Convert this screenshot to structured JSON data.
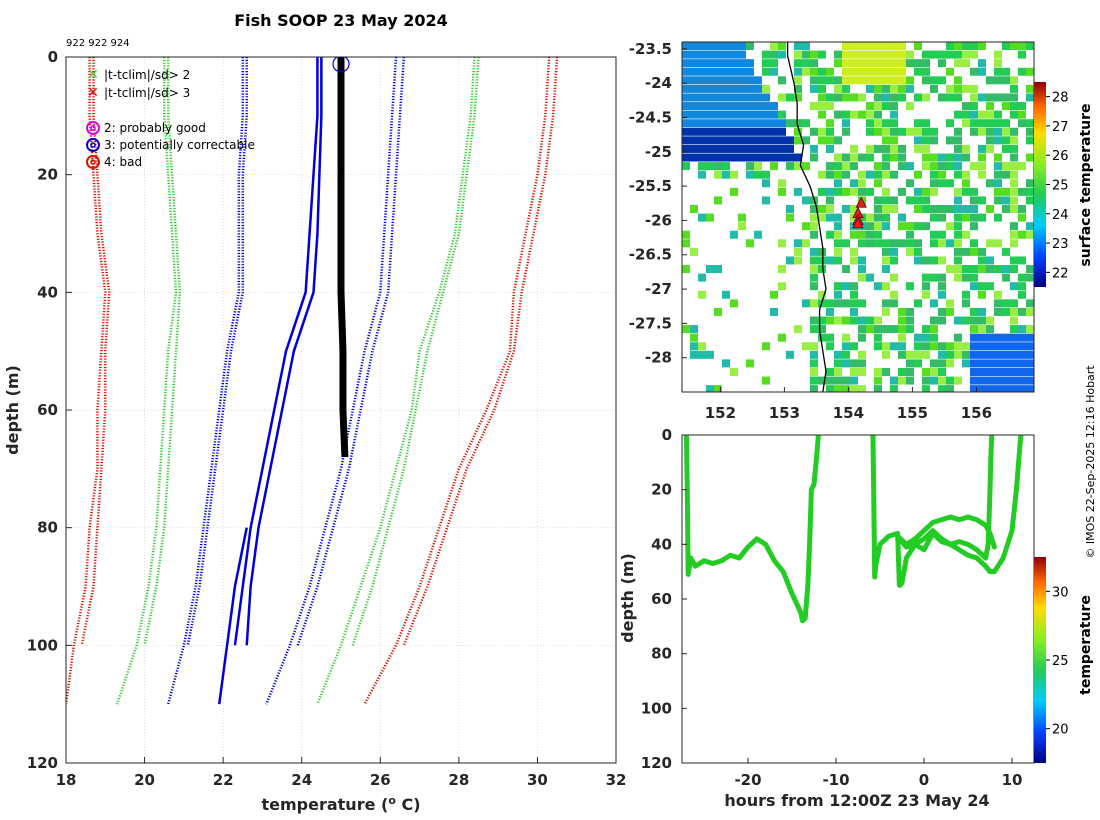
{
  "title": "Fish SOOP 23 May 2024",
  "platform_ids": "922 922 924",
  "credit": "© IMOS 22-Sep-2025 12:16 Hobart",
  "colors": {
    "profile": "#000000",
    "sd1": "#0000dd",
    "sd2": "#33cc33",
    "sd3": "#dd1100",
    "track": "#22cc22",
    "marker": "#dd2222"
  },
  "legend": {
    "items": [
      {
        "symbol": "x",
        "color": "#33cc33",
        "label": "|t-tclim|/sd> 2"
      },
      {
        "symbol": "x",
        "color": "#dd1100",
        "label": "|t-tclim|/sd> 3"
      },
      {
        "symbol": "o",
        "color": "#dd00dd",
        "label": "2: probably good"
      },
      {
        "symbol": "o",
        "color": "#0000dd",
        "label": "3: potentially correctable"
      },
      {
        "symbol": "o",
        "color": "#dd1100",
        "label": "4: bad"
      }
    ]
  },
  "chart_data": [
    {
      "type": "line",
      "name": "profile",
      "xlabel": "temperature (",
      "xlabel_sup": "o",
      "xlabel_end": " C)",
      "ylabel": "depth (m)",
      "xlim": [
        18,
        32
      ],
      "ylim": [
        0,
        120
      ],
      "y_reversed": true,
      "xticks": [
        18,
        20,
        22,
        24,
        26,
        28,
        30,
        32
      ],
      "yticks": [
        0,
        20,
        40,
        60,
        80,
        100,
        120
      ],
      "grid": true,
      "observed": {
        "name": "observed profile",
        "color": "#000000",
        "depth": [
          0,
          10,
          20,
          30,
          40,
          50,
          60,
          68
        ],
        "temp": [
          25.0,
          25.0,
          25.0,
          25.0,
          25.0,
          25.05,
          25.05,
          25.1
        ]
      },
      "flag_marker": {
        "flag": 3,
        "temp": 25.0,
        "depth": 0.5
      },
      "climatology": [
        {
          "name": "clim mean",
          "color": "#0000dd",
          "style": "solid",
          "depth": [
            0,
            10,
            20,
            30,
            40,
            50,
            60,
            70,
            80,
            90,
            100
          ],
          "temp": [
            24.4,
            24.4,
            24.3,
            24.2,
            24.1,
            23.6,
            23.3,
            23.0,
            22.7,
            22.5,
            22.3
          ]
        },
        {
          "name": "clim mean (2)",
          "color": "#0000dd",
          "style": "solid",
          "depth": [
            0,
            10,
            20,
            30,
            40,
            50,
            60,
            70,
            80,
            90,
            100
          ],
          "temp": [
            24.5,
            24.5,
            24.45,
            24.4,
            24.3,
            23.8,
            23.5,
            23.2,
            22.9,
            22.7,
            22.6
          ]
        },
        {
          "name": "clim mean (3)",
          "color": "#0000dd",
          "style": "solid",
          "depth": [
            80,
            90,
            100,
            110
          ],
          "temp": [
            22.6,
            22.3,
            22.1,
            21.9
          ]
        },
        {
          "name": "-1 sd",
          "color": "#0000dd",
          "style": "dotted",
          "depth": [
            0,
            10,
            20,
            30,
            40,
            50,
            60,
            70,
            80,
            90,
            100,
            110
          ],
          "temp": [
            22.5,
            22.5,
            22.4,
            22.4,
            22.4,
            22.1,
            21.9,
            21.7,
            21.5,
            21.3,
            21.0,
            20.6
          ]
        },
        {
          "name": "-1 sd (2)",
          "color": "#0000dd",
          "style": "dotted",
          "depth": [
            0,
            10,
            20,
            30,
            40,
            50,
            60,
            70,
            80,
            90,
            100
          ],
          "temp": [
            22.6,
            22.6,
            22.5,
            22.5,
            22.5,
            22.2,
            22.0,
            21.8,
            21.6,
            21.4,
            21.1
          ]
        },
        {
          "name": "+1 sd",
          "color": "#0000dd",
          "style": "dotted",
          "depth": [
            0,
            10,
            20,
            30,
            40,
            50,
            60,
            70,
            80,
            90,
            100,
            110
          ],
          "temp": [
            26.4,
            26.3,
            26.2,
            26.1,
            26.0,
            25.6,
            25.3,
            25.0,
            24.6,
            24.2,
            23.7,
            23.1
          ]
        },
        {
          "name": "+1 sd (2)",
          "color": "#0000dd",
          "style": "dotted",
          "depth": [
            0,
            10,
            20,
            30,
            40,
            50,
            60,
            70,
            80,
            90,
            100
          ],
          "temp": [
            26.6,
            26.5,
            26.4,
            26.3,
            26.2,
            25.8,
            25.5,
            25.2,
            24.8,
            24.4,
            23.9
          ]
        },
        {
          "name": "-2 sd",
          "color": "#33cc33",
          "style": "dotted",
          "depth": [
            0,
            10,
            20,
            30,
            40,
            50,
            60,
            70,
            80,
            90,
            100,
            110
          ],
          "temp": [
            20.5,
            20.5,
            20.6,
            20.7,
            20.8,
            20.6,
            20.5,
            20.4,
            20.3,
            20.1,
            19.8,
            19.3
          ]
        },
        {
          "name": "-2 sd (2)",
          "color": "#33cc33",
          "style": "dotted",
          "depth": [
            0,
            10,
            20,
            30,
            40,
            50,
            60,
            70,
            80,
            90,
            100
          ],
          "temp": [
            20.6,
            20.6,
            20.7,
            20.8,
            20.9,
            20.8,
            20.7,
            20.6,
            20.5,
            20.3,
            20.0
          ]
        },
        {
          "name": "+2 sd",
          "color": "#33cc33",
          "style": "dotted",
          "depth": [
            0,
            10,
            20,
            30,
            40,
            50,
            60,
            70,
            80,
            90,
            100,
            110
          ],
          "temp": [
            28.4,
            28.3,
            28.1,
            27.9,
            27.5,
            27.0,
            26.8,
            26.4,
            26.0,
            25.5,
            25.0,
            24.4
          ]
        },
        {
          "name": "+2 sd (2)",
          "color": "#33cc33",
          "style": "dotted",
          "depth": [
            0,
            10,
            20,
            30,
            40,
            50,
            60,
            70,
            80,
            90,
            100
          ],
          "temp": [
            28.5,
            28.4,
            28.2,
            28.0,
            27.6,
            27.2,
            26.9,
            26.6,
            26.2,
            25.8,
            25.3
          ]
        },
        {
          "name": "-3 sd",
          "color": "#dd1100",
          "style": "dotted",
          "depth": [
            0,
            10,
            20,
            30,
            40,
            50,
            60,
            70,
            80,
            90,
            100,
            110
          ],
          "temp": [
            18.6,
            18.6,
            18.7,
            18.8,
            19.0,
            18.9,
            18.8,
            18.8,
            18.6,
            18.5,
            18.2,
            18.0
          ]
        },
        {
          "name": "-3 sd (2)",
          "color": "#dd1100",
          "style": "dotted",
          "depth": [
            0,
            10,
            20,
            30,
            40,
            50,
            60,
            70,
            80,
            90,
            100
          ],
          "temp": [
            18.7,
            18.7,
            18.8,
            18.9,
            19.1,
            19.0,
            19.0,
            18.9,
            18.8,
            18.7,
            18.4
          ]
        },
        {
          "name": "+3 sd",
          "color": "#dd1100",
          "style": "dotted",
          "depth": [
            0,
            10,
            20,
            30,
            40,
            50,
            60,
            70,
            80,
            90,
            100,
            110
          ],
          "temp": [
            30.3,
            30.2,
            30.0,
            29.7,
            29.4,
            29.3,
            28.7,
            28.0,
            27.5,
            27.0,
            26.4,
            25.6
          ]
        },
        {
          "name": "+3 sd (2)",
          "color": "#dd1100",
          "style": "dotted",
          "depth": [
            0,
            10,
            20,
            30,
            40,
            50,
            60,
            70,
            80,
            90,
            100
          ],
          "temp": [
            30.5,
            30.4,
            30.2,
            29.9,
            29.6,
            29.4,
            28.9,
            28.2,
            27.7,
            27.2,
            26.6
          ]
        }
      ]
    },
    {
      "type": "heatmap",
      "name": "sst_map",
      "colorbar_label": "surface temperature",
      "xlim": [
        151.4,
        156.9
      ],
      "ylim": [
        -28.5,
        -23.4
      ],
      "xticks": [
        152,
        153,
        154,
        155,
        156
      ],
      "yticks": [
        -23.5,
        -24,
        -24.5,
        -25,
        -25.5,
        -26,
        -26.5,
        -27,
        -27.5,
        -28
      ],
      "clim": [
        21.5,
        28.5
      ],
      "cticks": [
        22,
        23,
        24,
        25,
        26,
        27,
        28
      ],
      "coastline": {
        "lon": [
          153.05,
          153.05,
          153.1,
          153.15,
          153.2,
          153.2,
          153.3,
          153.25,
          153.4,
          153.5,
          153.55,
          153.6,
          153.6,
          153.65,
          153.55,
          153.55,
          153.6,
          153.65,
          153.6
        ],
        "lat": [
          -23.4,
          -23.6,
          -23.8,
          -24.0,
          -24.3,
          -24.6,
          -24.9,
          -25.2,
          -25.5,
          -25.8,
          -26.1,
          -26.4,
          -26.7,
          -27.0,
          -27.3,
          -27.6,
          -27.9,
          -28.2,
          -28.5
        ]
      },
      "stations": {
        "lon": [
          154.2,
          154.15,
          154.15,
          154.15
        ],
        "lat": [
          -25.75,
          -25.9,
          -26.0,
          -26.05
        ],
        "marker": "triangle",
        "color": "#dd2222"
      }
    },
    {
      "type": "scatter",
      "name": "track_depth",
      "xlabel": "hours from 12:00Z 23 May 24",
      "ylabel": "depth (m)",
      "colorbar_label": "temperature",
      "xlim": [
        -27.5,
        12.5
      ],
      "ylim": [
        0,
        120
      ],
      "y_reversed": true,
      "xticks": [
        -20,
        -10,
        0,
        10
      ],
      "yticks": [
        0,
        20,
        40,
        60,
        80,
        100,
        120
      ],
      "clim": [
        17.5,
        32.5
      ],
      "cticks": [
        20,
        25,
        30
      ],
      "series": [
        {
          "name": "segment 1",
          "color": "#22cc22",
          "x": [
            -27.0,
            -26.9,
            -26.8,
            -26.5,
            -26.0,
            -25.0,
            -24.0,
            -23.0,
            -22.0,
            -21.0,
            -20.0,
            -19.0,
            -18.0,
            -17.0,
            -16.0,
            -15.0,
            -14.0,
            -13.8,
            -13.5,
            -13.2,
            -13.0,
            -12.8,
            -12.5,
            -12.2,
            -12.0
          ],
          "depth": [
            0,
            20,
            51,
            45,
            48,
            46,
            47,
            46,
            44,
            45,
            41,
            38,
            40,
            46,
            50,
            58,
            65,
            68,
            67,
            55,
            40,
            20,
            18,
            8,
            0
          ]
        },
        {
          "name": "segment 2",
          "color": "#22cc22",
          "x": [
            -5.8,
            -5.7,
            -5.6,
            -5.5,
            -5.0,
            -4.0,
            -3.0,
            -2.9,
            -2.8,
            -2.7,
            -2.5,
            -2.0,
            -1.0,
            0.0,
            1.0,
            2.0,
            3.0,
            4.0,
            5.0,
            6.0,
            7.0,
            7.3,
            7.5,
            7.6,
            7.7
          ],
          "depth": [
            0,
            25,
            52,
            48,
            40,
            37,
            36,
            45,
            55,
            55,
            54,
            45,
            40,
            38,
            35,
            38,
            40,
            39,
            40,
            42,
            45,
            40,
            20,
            8,
            0
          ]
        },
        {
          "name": "segment 3",
          "color": "#22cc22",
          "x": [
            -3.0,
            -2.0,
            -1.0,
            0.0,
            1.0,
            2.0,
            3.0,
            4.0,
            5.0,
            6.0,
            7.0,
            7.5,
            8.0
          ],
          "depth": [
            37,
            40,
            38,
            35,
            32,
            31,
            30,
            31,
            30,
            31,
            33,
            36,
            41
          ]
        },
        {
          "name": "segment 4",
          "color": "#22cc22",
          "x": [
            -2.8,
            -2.0,
            -1.0,
            0.0,
            1.0,
            2.0,
            3.0,
            4.0,
            5.0,
            6.0,
            7.0,
            7.5,
            8.0,
            9.0,
            10.0,
            10.5,
            10.8,
            11.0
          ],
          "depth": [
            38,
            41,
            40,
            42,
            36,
            39,
            40,
            42,
            44,
            45,
            48,
            50,
            50,
            45,
            35,
            20,
            8,
            0
          ]
        }
      ]
    }
  ]
}
